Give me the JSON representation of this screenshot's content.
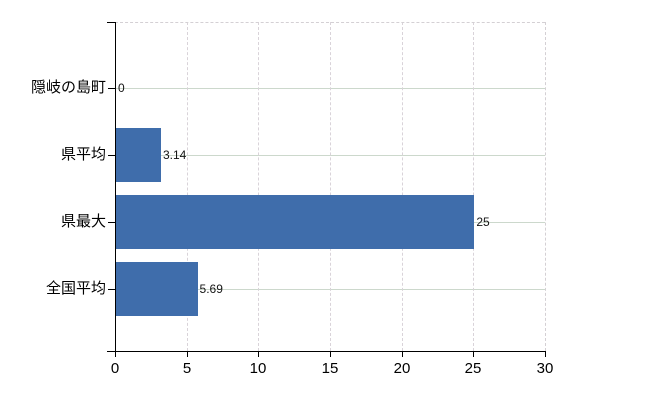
{
  "chart_data": {
    "type": "bar",
    "orientation": "horizontal",
    "title": "",
    "xlabel": "",
    "ylabel": "",
    "categories": [
      "隠岐の島町",
      "県平均",
      "県最大",
      "全国平均"
    ],
    "values": [
      0,
      3.14,
      25,
      5.69
    ],
    "value_labels": [
      "0",
      "3.14",
      "25",
      "5.69"
    ],
    "xlim": [
      0,
      30
    ],
    "xticks": [
      0,
      5,
      10,
      15,
      20,
      25,
      30
    ],
    "grid": true,
    "legend": false,
    "colors": {
      "bar": "#3f6dab",
      "axis": "#000000",
      "category_gridline": "#ccd8cc",
      "tick_gridline": "#d9d3d9",
      "plot_border": "#d4d0d4",
      "value_text": "#141414",
      "label_text": "#000000",
      "background": "#ffffff"
    }
  }
}
